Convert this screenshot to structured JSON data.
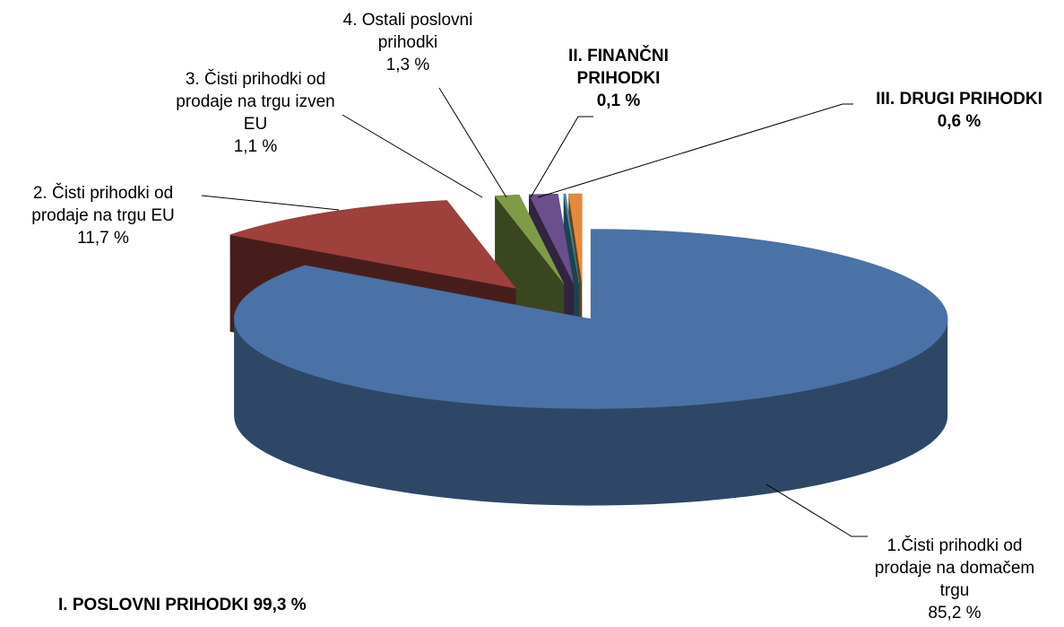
{
  "chart_data": {
    "type": "pie3d",
    "categories": [
      "1.Čisti prihodki od prodaje na domačem trgu",
      "2. Čisti prihodki od prodaje na trgu EU",
      "3. Čisti prihodki od prodaje na trgu izven EU",
      "4. Ostali poslovni prihodki",
      "II. FINANČNI PRIHODKI",
      "III. DRUGI PRIHODKI"
    ],
    "values": [
      85.2,
      11.7,
      1.1,
      1.3,
      0.1,
      0.6
    ],
    "value_labels": [
      "85,2 %",
      "11,7 %",
      "1,1 %",
      "1,3 %",
      "0,1 %",
      "0,6 %"
    ],
    "colors": [
      "#4a72a6",
      "#9e403c",
      "#7f9b48",
      "#6a4f8c",
      "#3e94ac",
      "#e58a3c"
    ],
    "annotations": [
      "I. POSLOVNI PRIHODKI 99,3 %"
    ]
  }
}
